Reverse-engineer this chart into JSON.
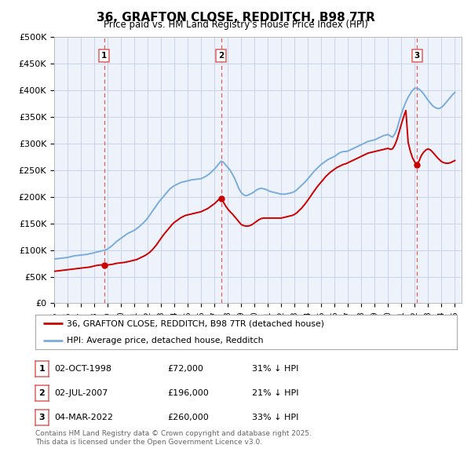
{
  "title": "36, GRAFTON CLOSE, REDDITCH, B98 7TR",
  "subtitle": "Price paid vs. HM Land Registry's House Price Index (HPI)",
  "xlim_start": 1995.0,
  "xlim_end": 2025.5,
  "ylim": [
    0,
    500000
  ],
  "yticks": [
    0,
    50000,
    100000,
    150000,
    200000,
    250000,
    300000,
    350000,
    400000,
    450000,
    500000
  ],
  "ytick_labels": [
    "£0",
    "£50K",
    "£100K",
    "£150K",
    "£200K",
    "£250K",
    "£300K",
    "£350K",
    "£400K",
    "£450K",
    "£500K"
  ],
  "background_color": "#ffffff",
  "plot_bg_color": "#eef3fb",
  "grid_color": "#c8d4e8",
  "purchase_color": "#cc0000",
  "hpi_color": "#7aacdc",
  "purchase_dates": [
    1998.75,
    2007.5,
    2022.17
  ],
  "purchase_prices": [
    72000,
    196000,
    260000
  ],
  "purchase_labels": [
    "1",
    "2",
    "3"
  ],
  "vline_color": "#e06060",
  "legend_entry1": "36, GRAFTON CLOSE, REDDITCH, B98 7TR (detached house)",
  "legend_entry2": "HPI: Average price, detached house, Redditch",
  "table_rows": [
    [
      "1",
      "02-OCT-1998",
      "£72,000",
      "31% ↓ HPI"
    ],
    [
      "2",
      "02-JUL-2007",
      "£196,000",
      "21% ↓ HPI"
    ],
    [
      "3",
      "04-MAR-2022",
      "£260,000",
      "33% ↓ HPI"
    ]
  ],
  "footer_text": "Contains HM Land Registry data © Crown copyright and database right 2025.\nThis data is licensed under the Open Government Licence v3.0.",
  "hpi_data": {
    "years": [
      1995.0,
      1995.17,
      1995.33,
      1995.5,
      1995.67,
      1995.83,
      1996.0,
      1996.17,
      1996.33,
      1996.5,
      1996.67,
      1996.83,
      1997.0,
      1997.17,
      1997.33,
      1997.5,
      1997.67,
      1997.83,
      1998.0,
      1998.17,
      1998.33,
      1998.5,
      1998.67,
      1998.83,
      1999.0,
      1999.17,
      1999.33,
      1999.5,
      1999.67,
      1999.83,
      2000.0,
      2000.17,
      2000.33,
      2000.5,
      2000.67,
      2000.83,
      2001.0,
      2001.17,
      2001.33,
      2001.5,
      2001.67,
      2001.83,
      2002.0,
      2002.17,
      2002.33,
      2002.5,
      2002.67,
      2002.83,
      2003.0,
      2003.17,
      2003.33,
      2003.5,
      2003.67,
      2003.83,
      2004.0,
      2004.17,
      2004.33,
      2004.5,
      2004.67,
      2004.83,
      2005.0,
      2005.17,
      2005.33,
      2005.5,
      2005.67,
      2005.83,
      2006.0,
      2006.17,
      2006.33,
      2006.5,
      2006.67,
      2006.83,
      2007.0,
      2007.17,
      2007.33,
      2007.5,
      2007.67,
      2007.83,
      2008.0,
      2008.17,
      2008.33,
      2008.5,
      2008.67,
      2008.83,
      2009.0,
      2009.17,
      2009.33,
      2009.5,
      2009.67,
      2009.83,
      2010.0,
      2010.17,
      2010.33,
      2010.5,
      2010.67,
      2010.83,
      2011.0,
      2011.17,
      2011.33,
      2011.5,
      2011.67,
      2011.83,
      2012.0,
      2012.17,
      2012.33,
      2012.5,
      2012.67,
      2012.83,
      2013.0,
      2013.17,
      2013.33,
      2013.5,
      2013.67,
      2013.83,
      2014.0,
      2014.17,
      2014.33,
      2014.5,
      2014.67,
      2014.83,
      2015.0,
      2015.17,
      2015.33,
      2015.5,
      2015.67,
      2015.83,
      2016.0,
      2016.17,
      2016.33,
      2016.5,
      2016.67,
      2016.83,
      2017.0,
      2017.17,
      2017.33,
      2017.5,
      2017.67,
      2017.83,
      2018.0,
      2018.17,
      2018.33,
      2018.5,
      2018.67,
      2018.83,
      2019.0,
      2019.17,
      2019.33,
      2019.5,
      2019.67,
      2019.83,
      2020.0,
      2020.17,
      2020.33,
      2020.5,
      2020.67,
      2020.83,
      2021.0,
      2021.17,
      2021.33,
      2021.5,
      2021.67,
      2021.83,
      2022.0,
      2022.17,
      2022.33,
      2022.5,
      2022.67,
      2022.83,
      2023.0,
      2023.17,
      2023.33,
      2023.5,
      2023.67,
      2023.83,
      2024.0,
      2024.17,
      2024.33,
      2024.5,
      2024.67,
      2024.83,
      2025.0
    ],
    "values": [
      83000,
      83500,
      84000,
      84500,
      85000,
      85500,
      86000,
      87000,
      88000,
      89000,
      89500,
      90000,
      90500,
      91000,
      91500,
      92000,
      93000,
      94000,
      95000,
      96000,
      97000,
      98000,
      99000,
      100000,
      102000,
      105000,
      108000,
      112000,
      116000,
      119000,
      122000,
      125000,
      128000,
      131000,
      133000,
      135000,
      137000,
      140000,
      143000,
      147000,
      151000,
      155000,
      160000,
      166000,
      172000,
      178000,
      184000,
      190000,
      195000,
      200000,
      205000,
      210000,
      215000,
      218000,
      221000,
      223000,
      225000,
      227000,
      228000,
      229000,
      230000,
      231000,
      232000,
      232500,
      233000,
      233500,
      234000,
      236000,
      238000,
      241000,
      244000,
      248000,
      252000,
      257000,
      262000,
      267000,
      265000,
      260000,
      255000,
      250000,
      243000,
      235000,
      225000,
      215000,
      208000,
      204000,
      202000,
      203000,
      205000,
      207000,
      210000,
      213000,
      215000,
      216000,
      215000,
      214000,
      212000,
      210000,
      209000,
      208000,
      207000,
      206000,
      205000,
      205000,
      205000,
      206000,
      207000,
      208000,
      210000,
      213000,
      217000,
      221000,
      225000,
      229000,
      234000,
      239000,
      244000,
      249000,
      253000,
      257000,
      261000,
      264000,
      267000,
      270000,
      272000,
      274000,
      276000,
      279000,
      282000,
      284000,
      285000,
      285000,
      286000,
      288000,
      290000,
      292000,
      294000,
      296000,
      298000,
      300000,
      302000,
      304000,
      305000,
      306000,
      307000,
      309000,
      311000,
      313000,
      315000,
      316000,
      317000,
      314000,
      312000,
      318000,
      328000,
      342000,
      356000,
      368000,
      378000,
      387000,
      394000,
      400000,
      404000,
      404000,
      402000,
      398000,
      393000,
      387000,
      381000,
      376000,
      371000,
      368000,
      366000,
      366000,
      368000,
      372000,
      377000,
      382000,
      387000,
      392000,
      396000
    ]
  },
  "price_paid_data": {
    "years": [
      1995.0,
      1995.17,
      1995.33,
      1995.5,
      1995.67,
      1995.83,
      1996.0,
      1996.17,
      1996.33,
      1996.5,
      1996.67,
      1996.83,
      1997.0,
      1997.17,
      1997.33,
      1997.5,
      1997.67,
      1997.83,
      1998.0,
      1998.17,
      1998.33,
      1998.5,
      1998.67,
      1998.83,
      1999.0,
      1999.17,
      1999.33,
      1999.5,
      1999.67,
      1999.83,
      2000.0,
      2000.17,
      2000.33,
      2000.5,
      2000.67,
      2000.83,
      2001.0,
      2001.17,
      2001.33,
      2001.5,
      2001.67,
      2001.83,
      2002.0,
      2002.17,
      2002.33,
      2002.5,
      2002.67,
      2002.83,
      2003.0,
      2003.17,
      2003.33,
      2003.5,
      2003.67,
      2003.83,
      2004.0,
      2004.17,
      2004.33,
      2004.5,
      2004.67,
      2004.83,
      2005.0,
      2005.17,
      2005.33,
      2005.5,
      2005.67,
      2005.83,
      2006.0,
      2006.17,
      2006.33,
      2006.5,
      2006.67,
      2006.83,
      2007.0,
      2007.17,
      2007.33,
      2007.5,
      2007.67,
      2007.83,
      2008.0,
      2008.17,
      2008.33,
      2008.5,
      2008.67,
      2008.83,
      2009.0,
      2009.17,
      2009.33,
      2009.5,
      2009.67,
      2009.83,
      2010.0,
      2010.17,
      2010.33,
      2010.5,
      2010.67,
      2010.83,
      2011.0,
      2011.17,
      2011.33,
      2011.5,
      2011.67,
      2011.83,
      2012.0,
      2012.17,
      2012.33,
      2012.5,
      2012.67,
      2012.83,
      2013.0,
      2013.17,
      2013.33,
      2013.5,
      2013.67,
      2013.83,
      2014.0,
      2014.17,
      2014.33,
      2014.5,
      2014.67,
      2014.83,
      2015.0,
      2015.17,
      2015.33,
      2015.5,
      2015.67,
      2015.83,
      2016.0,
      2016.17,
      2016.33,
      2016.5,
      2016.67,
      2016.83,
      2017.0,
      2017.17,
      2017.33,
      2017.5,
      2017.67,
      2017.83,
      2018.0,
      2018.17,
      2018.33,
      2018.5,
      2018.67,
      2018.83,
      2019.0,
      2019.17,
      2019.33,
      2019.5,
      2019.67,
      2019.83,
      2020.0,
      2020.17,
      2020.33,
      2020.5,
      2020.67,
      2020.83,
      2021.0,
      2021.17,
      2021.33,
      2021.5,
      2021.67,
      2021.83,
      2022.0,
      2022.17,
      2022.33,
      2022.5,
      2022.67,
      2022.83,
      2023.0,
      2023.17,
      2023.33,
      2023.5,
      2023.67,
      2023.83,
      2024.0,
      2024.17,
      2024.33,
      2024.5,
      2024.67,
      2024.83,
      2025.0
    ],
    "values": [
      60000,
      60500,
      61000,
      61500,
      62000,
      62500,
      63000,
      63500,
      64000,
      64500,
      65000,
      65500,
      66000,
      66500,
      67000,
      67500,
      68000,
      69000,
      70000,
      71000,
      71500,
      72000,
      72000,
      72000,
      72000,
      72500,
      73000,
      74000,
      75000,
      75500,
      76000,
      76500,
      77000,
      78000,
      79000,
      80000,
      81000,
      82000,
      84000,
      86000,
      88000,
      90000,
      93000,
      96000,
      100000,
      105000,
      110000,
      116000,
      122000,
      128000,
      133000,
      138000,
      143000,
      148000,
      152000,
      155000,
      158000,
      161000,
      163000,
      165000,
      166000,
      167000,
      168000,
      169000,
      170000,
      171000,
      172000,
      174000,
      176000,
      178000,
      181000,
      184000,
      187000,
      191000,
      195000,
      196000,
      190000,
      183000,
      177000,
      172000,
      168000,
      163000,
      158000,
      153000,
      148000,
      146000,
      145000,
      145000,
      146000,
      148000,
      151000,
      154000,
      157000,
      159000,
      160000,
      160000,
      160000,
      160000,
      160000,
      160000,
      160000,
      160000,
      160000,
      161000,
      162000,
      163000,
      164000,
      165000,
      167000,
      170000,
      174000,
      178000,
      183000,
      188000,
      194000,
      200000,
      206000,
      212000,
      218000,
      223000,
      228000,
      233000,
      238000,
      242000,
      246000,
      249000,
      252000,
      255000,
      257000,
      259000,
      261000,
      262000,
      264000,
      266000,
      268000,
      270000,
      272000,
      274000,
      276000,
      278000,
      280000,
      282000,
      283000,
      284000,
      285000,
      286000,
      287000,
      288000,
      289000,
      290000,
      291000,
      289000,
      290000,
      297000,
      308000,
      322000,
      337000,
      351000,
      362000,
      302000,
      285000,
      273000,
      265000,
      260000,
      268000,
      278000,
      284000,
      288000,
      290000,
      288000,
      284000,
      279000,
      274000,
      270000,
      266000,
      264000,
      263000,
      263000,
      264000,
      266000,
      268000
    ]
  }
}
